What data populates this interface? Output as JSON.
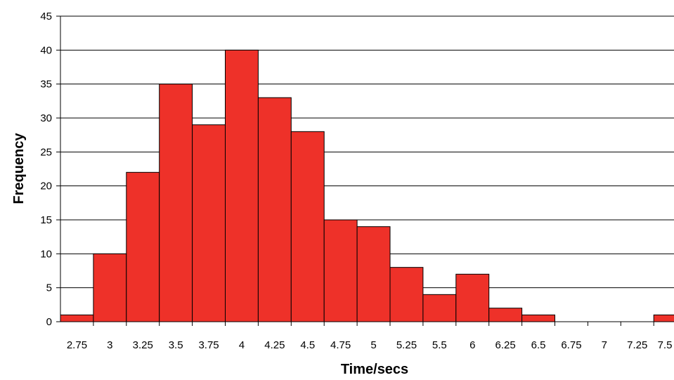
{
  "chart_data": {
    "type": "bar",
    "title": "",
    "xlabel": "Time/secs",
    "ylabel": "Frequency",
    "ylim": [
      0,
      45
    ],
    "ytick_step": 5,
    "grid": true,
    "legend": "none",
    "categories": [
      "2.75",
      "3",
      "3.25",
      "3.5",
      "3.75",
      "4",
      "4.25",
      "4.5",
      "4.75",
      "5",
      "5.25",
      "5.5",
      "6",
      "6.25",
      "6.5",
      "6.75",
      "7",
      "7.25",
      "7.5"
    ],
    "values": [
      1,
      10,
      22,
      35,
      29,
      40,
      33,
      28,
      15,
      14,
      8,
      4,
      7,
      2,
      1,
      0,
      0,
      0,
      1
    ],
    "colors": {
      "bar": "#ee3129",
      "bar_edge": "#000000",
      "grid": "#000000"
    }
  }
}
